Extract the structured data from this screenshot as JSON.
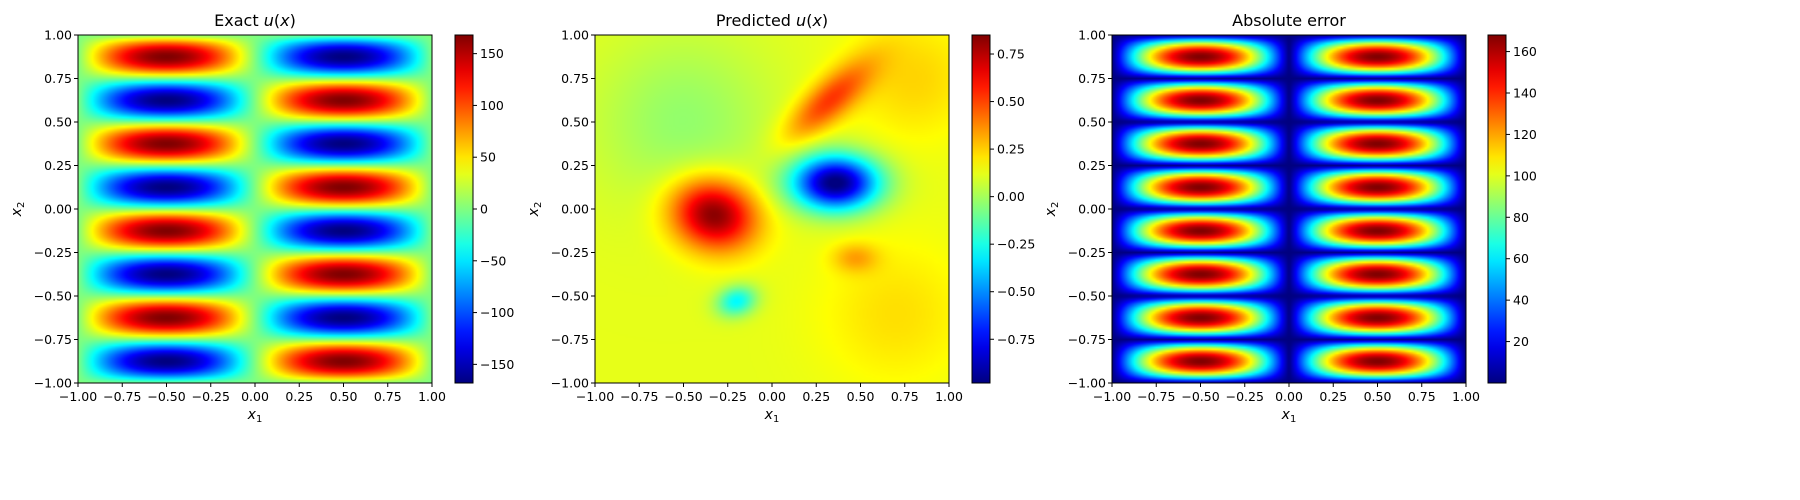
{
  "chart_data": [
    {
      "type": "heatmap",
      "title": "Exact u(x)",
      "title_parts": [
        "Exact ",
        "u",
        "(",
        "x",
        ")"
      ],
      "xlabel": "x1",
      "ylabel": "x2",
      "xlim": [
        -1.0,
        1.0
      ],
      "ylim": [
        -1.0,
        1.0
      ],
      "x_ticks": [
        "−1.00",
        "−0.75",
        "−0.50",
        "−0.25",
        "0.00",
        "0.25",
        "0.50",
        "0.75",
        "1.00"
      ],
      "y_ticks": [
        "−1.00",
        "−0.75",
        "−0.50",
        "−0.25",
        "0.00",
        "0.25",
        "0.50",
        "0.75",
        "1.00"
      ],
      "colormap": "jet",
      "colorbar": {
        "range": [
          -168,
          168
        ],
        "ticks": [
          -150,
          -100,
          -50,
          0,
          50,
          100,
          150
        ],
        "tick_labels": [
          "−150",
          "−100",
          "−50",
          "0",
          "50",
          "100",
          "150"
        ]
      },
      "field": {
        "expression": "168 * sin(pi*x1) * sin(4*pi*x2)",
        "sampled_grid": 9,
        "samples_x1": [
          -0.875,
          -0.625,
          -0.375,
          -0.125,
          0.125,
          0.375,
          0.625,
          0.875
        ],
        "samples_x2": [
          0.875,
          0.625,
          0.375,
          0.125,
          -0.125,
          -0.375,
          -0.625,
          -0.875
        ],
        "peak_sign_pattern_left_column_top_to_bottom": [
          "-",
          "+",
          "-",
          "+",
          "-",
          "+",
          "-",
          "+"
        ],
        "peak_sign_pattern_right_column_top_to_bottom": [
          "+",
          "-",
          "+",
          "-",
          "+",
          "-",
          "+",
          "-"
        ],
        "peak_abs_value": 168
      }
    },
    {
      "type": "heatmap",
      "title": "Predicted u(x)",
      "title_parts": [
        "Predicted ",
        "u",
        "(",
        "x",
        ")"
      ],
      "xlabel": "x1",
      "ylabel": "x2",
      "xlim": [
        -1.0,
        1.0
      ],
      "ylim": [
        -1.0,
        1.0
      ],
      "x_ticks": [
        "−1.00",
        "−0.75",
        "−0.50",
        "−0.25",
        "0.00",
        "0.25",
        "0.50",
        "0.75",
        "1.00"
      ],
      "y_ticks": [
        "−1.00",
        "−0.75",
        "−0.50",
        "−0.25",
        "0.00",
        "0.25",
        "0.50",
        "0.75",
        "1.00"
      ],
      "colormap": "jet",
      "colorbar": {
        "range": [
          -0.98,
          0.85
        ],
        "ticks": [
          -0.75,
          -0.5,
          -0.25,
          0.0,
          0.25,
          0.5,
          0.75
        ],
        "tick_labels": [
          "−0.75",
          "−0.50",
          "−0.25",
          "0.00",
          "0.25",
          "0.50",
          "0.75"
        ]
      },
      "field": {
        "baseline": 0.12,
        "features": [
          {
            "x1": -0.33,
            "x2": -0.03,
            "value": 0.85,
            "note": "red lobe"
          },
          {
            "x1": 0.35,
            "x2": 0.15,
            "value": -0.98,
            "note": "blue lobe"
          },
          {
            "x1": 0.3,
            "x2": 0.62,
            "value": 0.5,
            "note": "orange band"
          },
          {
            "x1": 0.45,
            "x2": -0.28,
            "value": 0.3,
            "note": "yellow spot"
          },
          {
            "x1": -0.2,
            "x2": -0.53,
            "value": -0.3,
            "note": "cyan spot"
          },
          {
            "x1": -0.55,
            "x2": 0.55,
            "value": -0.05,
            "note": "cyan-green region"
          },
          {
            "x1": 0.8,
            "x2": 0.75,
            "value": 0.25,
            "note": "yellow corner"
          }
        ]
      }
    },
    {
      "type": "heatmap",
      "title": "Absolute error",
      "title_parts": [
        "Absolute error"
      ],
      "xlabel": "x1",
      "ylabel": "x2",
      "xlim": [
        -1.0,
        1.0
      ],
      "ylim": [
        -1.0,
        1.0
      ],
      "x_ticks": [
        "−1.00",
        "−0.75",
        "−0.50",
        "−0.25",
        "0.00",
        "0.25",
        "0.50",
        "0.75",
        "1.00"
      ],
      "y_ticks": [
        "−1.00",
        "−0.75",
        "−0.50",
        "−0.25",
        "0.00",
        "0.25",
        "0.50",
        "0.75",
        "1.00"
      ],
      "colormap": "jet",
      "colorbar": {
        "range": [
          0,
          168
        ],
        "ticks": [
          20,
          40,
          60,
          80,
          100,
          120,
          140,
          160
        ],
        "tick_labels": [
          "20",
          "40",
          "60",
          "80",
          "100",
          "120",
          "140",
          "160"
        ]
      },
      "field": {
        "expression": "|168 * sin(pi*x1) * sin(4*pi*x2)|",
        "peak_abs_value": 168,
        "min_value": 0
      }
    }
  ]
}
